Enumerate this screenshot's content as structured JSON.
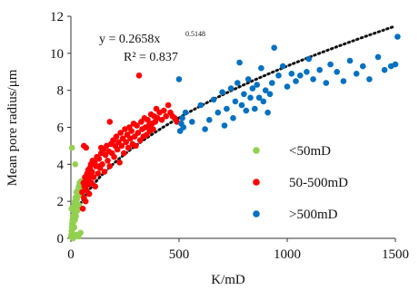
{
  "chart_data": {
    "type": "scatter",
    "xlabel": "K/mD",
    "ylabel": "Mean pore radius/μm",
    "xlim": [
      0,
      1500
    ],
    "ylim": [
      0,
      12
    ],
    "xticks": [
      0,
      500,
      1000,
      1500
    ],
    "yticks": [
      0,
      2,
      4,
      6,
      8,
      10,
      12
    ],
    "grid": false,
    "legend_position": "right-center",
    "trendline": {
      "equation_text": "y = 0.2658x",
      "exponent_text": "0.5148",
      "r2_text": "R² = 0.837",
      "coef": 0.2658,
      "exponent": 0.5148,
      "style": "dotted",
      "color": "#111111"
    },
    "series": [
      {
        "name": "<50mD",
        "color": "#92d050",
        "points": [
          [
            1,
            0.1
          ],
          [
            2,
            0.2
          ],
          [
            3,
            0.4
          ],
          [
            4,
            0.6
          ],
          [
            5,
            0.3
          ],
          [
            6,
            0.8
          ],
          [
            7,
            1.0
          ],
          [
            8,
            0.5
          ],
          [
            9,
            1.2
          ],
          [
            10,
            0.7
          ],
          [
            11,
            1.5
          ],
          [
            12,
            0.9
          ],
          [
            13,
            1.1
          ],
          [
            14,
            1.8
          ],
          [
            15,
            1.3
          ],
          [
            16,
            0.6
          ],
          [
            17,
            1.6
          ],
          [
            18,
            2.0
          ],
          [
            19,
            1.0
          ],
          [
            20,
            1.4
          ],
          [
            21,
            2.2
          ],
          [
            22,
            1.7
          ],
          [
            24,
            1.2
          ],
          [
            25,
            2.5
          ],
          [
            26,
            1.9
          ],
          [
            28,
            2.1
          ],
          [
            30,
            1.5
          ],
          [
            32,
            2.6
          ],
          [
            34,
            2.3
          ],
          [
            36,
            2.8
          ],
          [
            38,
            1.8
          ],
          [
            40,
            3.0
          ],
          [
            42,
            2.4
          ],
          [
            45,
            2.7
          ],
          [
            48,
            3.1
          ],
          [
            5,
            4.9
          ],
          [
            20,
            4.0
          ],
          [
            25,
            0.2
          ],
          [
            35,
            0.1
          ],
          [
            45,
            0.3
          ],
          [
            10,
            0.0
          ],
          [
            3,
            1.6
          ]
        ]
      },
      {
        "name": "50-500mD",
        "color": "#ff0000",
        "points": [
          [
            52,
            2.5
          ],
          [
            55,
            1.6
          ],
          [
            58,
            3.0
          ],
          [
            60,
            2.2
          ],
          [
            62,
            2.8
          ],
          [
            65,
            3.3
          ],
          [
            68,
            2.0
          ],
          [
            70,
            3.1
          ],
          [
            72,
            2.6
          ],
          [
            75,
            3.5
          ],
          [
            78,
            2.9
          ],
          [
            80,
            3.7
          ],
          [
            82,
            3.2
          ],
          [
            85,
            2.4
          ],
          [
            88,
            3.8
          ],
          [
            90,
            3.4
          ],
          [
            92,
            4.0
          ],
          [
            95,
            3.0
          ],
          [
            98,
            3.6
          ],
          [
            100,
            4.2
          ],
          [
            105,
            3.3
          ],
          [
            110,
            4.1
          ],
          [
            112,
            2.8
          ],
          [
            115,
            3.9
          ],
          [
            120,
            4.4
          ],
          [
            125,
            3.5
          ],
          [
            130,
            4.3
          ],
          [
            135,
            3.8
          ],
          [
            140,
            4.6
          ],
          [
            145,
            4.0
          ],
          [
            150,
            4.8
          ],
          [
            155,
            3.6
          ],
          [
            160,
            4.5
          ],
          [
            165,
            5.0
          ],
          [
            170,
            4.2
          ],
          [
            175,
            4.7
          ],
          [
            180,
            3.9
          ],
          [
            185,
            5.1
          ],
          [
            190,
            4.6
          ],
          [
            195,
            5.3
          ],
          [
            200,
            4.4
          ],
          [
            205,
            5.0
          ],
          [
            210,
            5.5
          ],
          [
            215,
            4.8
          ],
          [
            220,
            5.2
          ],
          [
            225,
            4.1
          ],
          [
            230,
            5.7
          ],
          [
            235,
            5.0
          ],
          [
            240,
            5.4
          ],
          [
            245,
            4.6
          ],
          [
            250,
            5.9
          ],
          [
            255,
            5.2
          ],
          [
            260,
            5.6
          ],
          [
            265,
            4.9
          ],
          [
            270,
            6.0
          ],
          [
            275,
            5.4
          ],
          [
            280,
            5.8
          ],
          [
            285,
            5.1
          ],
          [
            290,
            6.2
          ],
          [
            295,
            5.5
          ],
          [
            300,
            5.0
          ],
          [
            305,
            6.1
          ],
          [
            310,
            5.7
          ],
          [
            315,
            8.8
          ],
          [
            320,
            5.3
          ],
          [
            325,
            6.3
          ],
          [
            330,
            5.9
          ],
          [
            335,
            5.5
          ],
          [
            340,
            6.5
          ],
          [
            345,
            6.0
          ],
          [
            350,
            5.6
          ],
          [
            355,
            6.4
          ],
          [
            360,
            6.1
          ],
          [
            365,
            5.8
          ],
          [
            370,
            6.7
          ],
          [
            375,
            6.2
          ],
          [
            380,
            5.9
          ],
          [
            385,
            6.6
          ],
          [
            390,
            6.3
          ],
          [
            395,
            7.0
          ],
          [
            400,
            6.5
          ],
          [
            410,
            6.8
          ],
          [
            420,
            6.4
          ],
          [
            430,
            6.9
          ],
          [
            440,
            6.6
          ],
          [
            450,
            7.2
          ],
          [
            460,
            6.8
          ],
          [
            470,
            6.6
          ],
          [
            480,
            6.5
          ],
          [
            490,
            6.3
          ],
          [
            60,
            5.0
          ],
          [
            70,
            4.9
          ],
          [
            140,
            4.9
          ],
          [
            130,
            3.9
          ],
          [
            180,
            6.3
          ]
        ]
      },
      {
        "name": ">500mD",
        "color": "#0070c0",
        "points": [
          [
            500,
            8.6
          ],
          [
            505,
            5.8
          ],
          [
            510,
            6.2
          ],
          [
            515,
            6.5
          ],
          [
            520,
            6.0
          ],
          [
            530,
            6.8
          ],
          [
            560,
            6.3
          ],
          [
            600,
            7.2
          ],
          [
            620,
            5.9
          ],
          [
            640,
            6.4
          ],
          [
            660,
            7.5
          ],
          [
            680,
            6.8
          ],
          [
            700,
            7.9
          ],
          [
            710,
            6.1
          ],
          [
            720,
            7.0
          ],
          [
            740,
            8.1
          ],
          [
            750,
            6.5
          ],
          [
            760,
            7.4
          ],
          [
            770,
            8.4
          ],
          [
            780,
            9.5
          ],
          [
            790,
            7.2
          ],
          [
            800,
            7.8
          ],
          [
            810,
            6.9
          ],
          [
            820,
            8.6
          ],
          [
            830,
            7.6
          ],
          [
            840,
            8.1
          ],
          [
            850,
            7.0
          ],
          [
            860,
            8.3
          ],
          [
            870,
            7.6
          ],
          [
            880,
            9.2
          ],
          [
            890,
            7.4
          ],
          [
            900,
            8.0
          ],
          [
            910,
            6.8
          ],
          [
            920,
            7.8
          ],
          [
            930,
            8.4
          ],
          [
            940,
            10.3
          ],
          [
            960,
            8.8
          ],
          [
            980,
            9.3
          ],
          [
            1000,
            8.2
          ],
          [
            1020,
            8.9
          ],
          [
            1040,
            8.5
          ],
          [
            1060,
            8.8
          ],
          [
            1090,
            9.0
          ],
          [
            1100,
            9.7
          ],
          [
            1120,
            8.6
          ],
          [
            1150,
            9.1
          ],
          [
            1180,
            8.4
          ],
          [
            1200,
            9.4
          ],
          [
            1230,
            9.0
          ],
          [
            1260,
            8.5
          ],
          [
            1290,
            9.6
          ],
          [
            1320,
            8.9
          ],
          [
            1350,
            9.3
          ],
          [
            1380,
            8.6
          ],
          [
            1420,
            9.8
          ],
          [
            1450,
            9.1
          ],
          [
            1480,
            9.3
          ],
          [
            1500,
            9.4
          ],
          [
            1510,
            10.9
          ]
        ]
      }
    ]
  }
}
